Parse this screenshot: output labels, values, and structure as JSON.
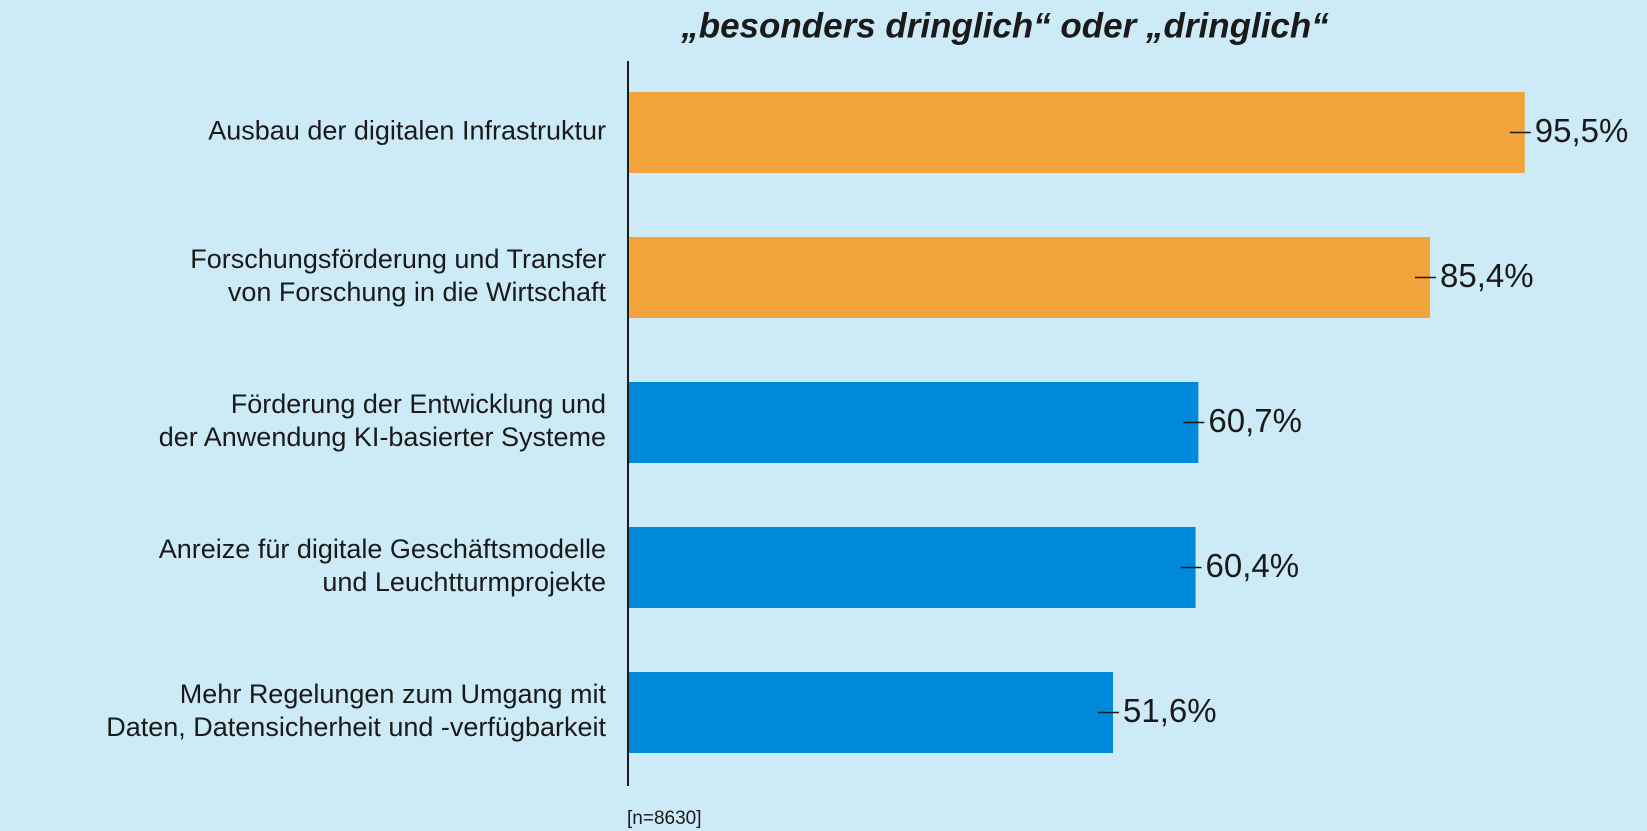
{
  "chart_data": {
    "type": "hbar",
    "title": "„besonders dringlich“ oder „dringlich“",
    "categories": [
      [
        "Ausbau der digitalen Infrastruktur"
      ],
      [
        "Forschungsförderung und Transfer",
        "von Forschung in die Wirtschaft"
      ],
      [
        "Förderung der Entwicklung und",
        "der Anwendung KI-basierter Systeme"
      ],
      [
        "Anreize für digitale Geschäftsmodelle",
        "und Leuchtturmprojekte"
      ],
      [
        "Mehr Regelungen zum Umgang mit",
        "Daten, Datensicherheit und -verfügbarkeit"
      ]
    ],
    "values": [
      95.5,
      85.4,
      60.7,
      60.4,
      51.6
    ],
    "value_labels": [
      "95,5%",
      "85,4%",
      "60,7%",
      "60,4%",
      "51,6%"
    ],
    "colors": [
      "#f2a43a",
      "#f2a43a",
      "#0088db",
      "#0088db",
      "#0088db"
    ],
    "note": "[n=8630]"
  }
}
